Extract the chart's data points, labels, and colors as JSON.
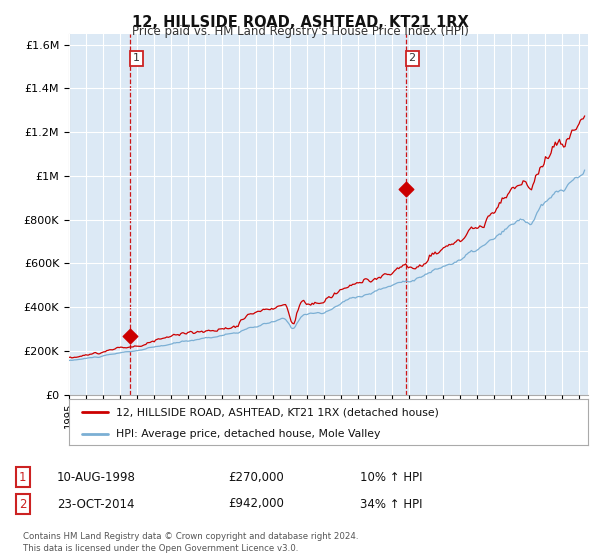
{
  "title": "12, HILLSIDE ROAD, ASHTEAD, KT21 1RX",
  "subtitle": "Price paid vs. HM Land Registry's House Price Index (HPI)",
  "ylim": [
    0,
    1650000
  ],
  "xlim_start": 1995.0,
  "xlim_end": 2025.5,
  "background_color": "#ffffff",
  "plot_bg_color": "#dce9f5",
  "grid_color": "#ffffff",
  "red_line_color": "#cc0000",
  "blue_line_color": "#7bafd4",
  "sale1_date": 1998.608,
  "sale1_price": 270000,
  "sale1_label": "1",
  "sale1_display": "10-AUG-1998",
  "sale1_price_str": "£270,000",
  "sale1_hpi": "10% ↑ HPI",
  "sale2_date": 2014.808,
  "sale2_price": 942000,
  "sale2_label": "2",
  "sale2_display": "23-OCT-2014",
  "sale2_price_str": "£942,000",
  "sale2_hpi": "34% ↑ HPI",
  "legend_line1": "12, HILLSIDE ROAD, ASHTEAD, KT21 1RX (detached house)",
  "legend_line2": "HPI: Average price, detached house, Mole Valley",
  "footer": "Contains HM Land Registry data © Crown copyright and database right 2024.\nThis data is licensed under the Open Government Licence v3.0.",
  "ytick_labels": [
    "£0",
    "£200K",
    "£400K",
    "£600K",
    "£800K",
    "£1M",
    "£1.2M",
    "£1.4M",
    "£1.6M"
  ],
  "ytick_values": [
    0,
    200000,
    400000,
    600000,
    800000,
    1000000,
    1200000,
    1400000,
    1600000
  ],
  "xtick_years": [
    1995,
    1996,
    1997,
    1998,
    1999,
    2000,
    2001,
    2002,
    2003,
    2004,
    2005,
    2006,
    2007,
    2008,
    2009,
    2010,
    2011,
    2012,
    2013,
    2014,
    2015,
    2016,
    2017,
    2018,
    2019,
    2020,
    2021,
    2022,
    2023,
    2024,
    2025
  ]
}
